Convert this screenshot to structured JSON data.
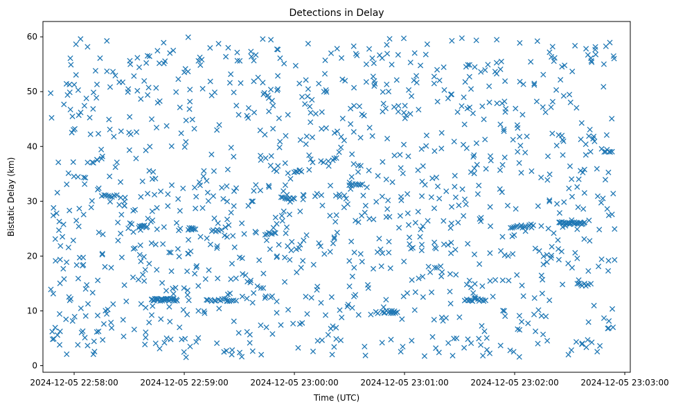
{
  "chart_data": {
    "type": "scatter",
    "title": "Detections in Delay",
    "xlabel": "Time (UTC)",
    "ylabel": "Bistatic Delay (km)",
    "marker": "x",
    "color": "#1f77b4",
    "grid": false,
    "legend": "none",
    "xlim": [
      "2024-12-05 22:57:43",
      "2024-12-05 23:03:03"
    ],
    "ylim": [
      -1.2,
      62.8
    ],
    "x_ticks": [
      "2024-12-05 22:58:00",
      "2024-12-05 22:59:00",
      "2024-12-05 23:00:00",
      "2024-12-05 23:01:00",
      "2024-12-05 23:02:00",
      "2024-12-05 23:03:00"
    ],
    "y_ticks": [
      0,
      10,
      20,
      30,
      40,
      50,
      60
    ],
    "time_range": [
      "2024-12-05 22:57:47",
      "2024-12-05 23:02:55"
    ],
    "delay_range": [
      1.5,
      60
    ],
    "background_count": 1150,
    "clusters": [
      {
        "t_start": "2024-12-05 22:58:42",
        "t_end": "2024-12-05 22:58:56",
        "delay": 12.0,
        "count": 28
      },
      {
        "t_start": "2024-12-05 22:59:12",
        "t_end": "2024-12-05 22:59:28",
        "delay": 12.0,
        "count": 16
      },
      {
        "t_start": "2024-12-05 22:58:35",
        "t_end": "2024-12-05 22:58:40",
        "delay": 25.4,
        "count": 8
      },
      {
        "t_start": "2024-12-05 22:59:02",
        "t_end": "2024-12-05 22:59:06",
        "delay": 25.0,
        "count": 8
      },
      {
        "t_start": "2024-12-05 22:59:15",
        "t_end": "2024-12-05 22:59:20",
        "delay": 24.7,
        "count": 6
      },
      {
        "t_start": "2024-12-05 22:59:45",
        "t_end": "2024-12-05 22:59:50",
        "delay": 24.2,
        "count": 6
      },
      {
        "t_start": "2024-12-05 22:58:15",
        "t_end": "2024-12-05 22:58:23",
        "delay": 31.0,
        "count": 8
      },
      {
        "t_start": "2024-12-05 22:59:53",
        "t_end": "2024-12-05 23:00:00",
        "delay": 30.5,
        "count": 9
      },
      {
        "t_start": "2024-12-05 23:00:00",
        "t_end": "2024-12-05 23:00:04",
        "delay": 35.5,
        "count": 6
      },
      {
        "t_start": "2024-12-05 23:00:30",
        "t_end": "2024-12-05 23:00:37",
        "delay": 33.0,
        "count": 8
      },
      {
        "t_start": "2024-12-05 23:00:48",
        "t_end": "2024-12-05 23:00:56",
        "delay": 9.8,
        "count": 12
      },
      {
        "t_start": "2024-12-05 23:01:33",
        "t_end": "2024-12-05 23:01:44",
        "delay": 12.0,
        "count": 14
      },
      {
        "t_start": "2024-12-05 23:01:58",
        "t_end": "2024-12-05 23:02:10",
        "delay": 25.4,
        "count": 14
      },
      {
        "t_start": "2024-12-05 23:02:24",
        "t_end": "2024-12-05 23:02:38",
        "delay": 26.0,
        "count": 26
      },
      {
        "t_start": "2024-12-05 23:02:34",
        "t_end": "2024-12-05 23:02:40",
        "delay": 14.8,
        "count": 7
      },
      {
        "t_start": "2024-12-05 23:02:49",
        "t_end": "2024-12-05 23:02:53",
        "delay": 39.2,
        "count": 6
      }
    ]
  }
}
